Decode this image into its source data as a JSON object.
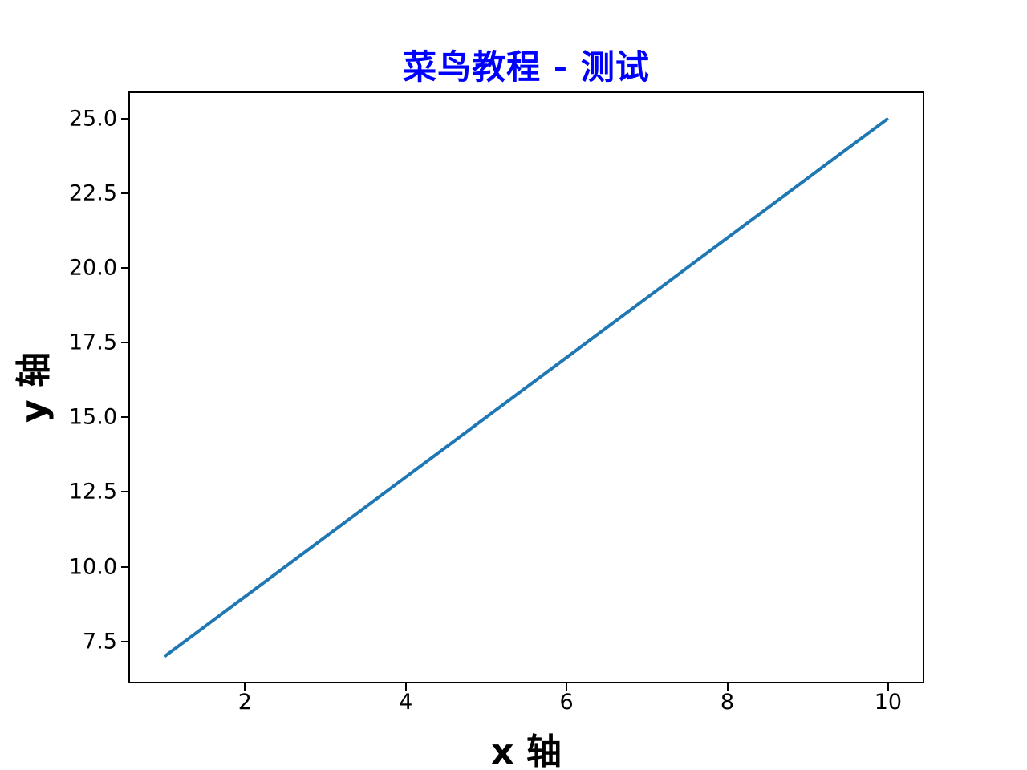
{
  "chart_data": {
    "type": "line",
    "title": "菜鸟教程 - 测试",
    "title_color": "#0000ff",
    "xlabel": "x 轴",
    "ylabel": "y 轴",
    "x": [
      1,
      2,
      3,
      4,
      5,
      6,
      7,
      8,
      9,
      10
    ],
    "series": [
      {
        "values": [
          7,
          9,
          11,
          13,
          15,
          17,
          19,
          21,
          23,
          25
        ],
        "color": "#1f77b4",
        "line_width": 4
      }
    ],
    "xlim": [
      0.55,
      10.45
    ],
    "ylim": [
      6.1,
      25.9
    ],
    "x_tick_values": [
      2,
      4,
      6,
      8,
      10
    ],
    "x_tick_labels": [
      "2",
      "4",
      "6",
      "8",
      "10"
    ],
    "y_tick_values": [
      7.5,
      10.0,
      12.5,
      15.0,
      17.5,
      20.0,
      22.5,
      25.0
    ],
    "y_tick_labels": [
      "7.5",
      "10.0",
      "12.5",
      "15.0",
      "17.5",
      "20.0",
      "22.5",
      "25.0"
    ],
    "grid": false,
    "legend_position": null,
    "axis_color": "#000000",
    "background": "#ffffff"
  }
}
